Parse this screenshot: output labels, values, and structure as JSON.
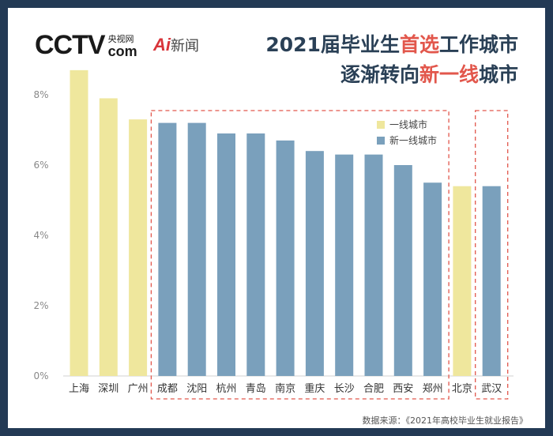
{
  "logo": {
    "main": "CCTV",
    "cn": "央视网",
    "com": "com"
  },
  "ai_logo": {
    "ai": "Ai",
    "text": "新闻"
  },
  "title": {
    "line1_a": "2021届毕业生",
    "line1_hl": "首选",
    "line1_b": "工作城市",
    "line2_a": "逐渐转向",
    "line2_hl": "新一线",
    "line2_b": "城市"
  },
  "source": "数据来源：《2021年高校毕业生就业报告》",
  "colors": {
    "tier1": "#efe79d",
    "new_tier1": "#7aa0bc",
    "highlight": "#e2574c",
    "title": "#2a4056"
  },
  "chart_data": {
    "type": "bar",
    "title": "2021届毕业生首选工作城市逐渐转向新一线城市",
    "categories": [
      "上海",
      "深圳",
      "广州",
      "成都",
      "沈阳",
      "杭州",
      "青岛",
      "南京",
      "重庆",
      "长沙",
      "合肥",
      "西安",
      "郑州",
      "北京",
      "武汉"
    ],
    "values": [
      8.7,
      7.9,
      7.3,
      7.2,
      7.2,
      6.9,
      6.9,
      6.7,
      6.4,
      6.3,
      6.3,
      6.0,
      5.5,
      5.4,
      5.4
    ],
    "groups": [
      "一线城市",
      "一线城市",
      "一线城市",
      "新一线城市",
      "新一线城市",
      "新一线城市",
      "新一线城市",
      "新一线城市",
      "新一线城市",
      "新一线城市",
      "新一线城市",
      "新一线城市",
      "新一线城市",
      "一线城市",
      "新一线城市"
    ],
    "yticks": [
      0,
      2,
      4,
      6,
      8
    ],
    "ytick_labels": [
      "0%",
      "2%",
      "4%",
      "6%",
      "8%"
    ],
    "ylim": [
      0,
      9
    ],
    "legend": [
      {
        "label": "一线城市",
        "color": "#efe79d"
      },
      {
        "label": "新一线城市",
        "color": "#7aa0bc"
      }
    ],
    "legend_position": "top-right",
    "xlabel": "",
    "ylabel": ""
  }
}
